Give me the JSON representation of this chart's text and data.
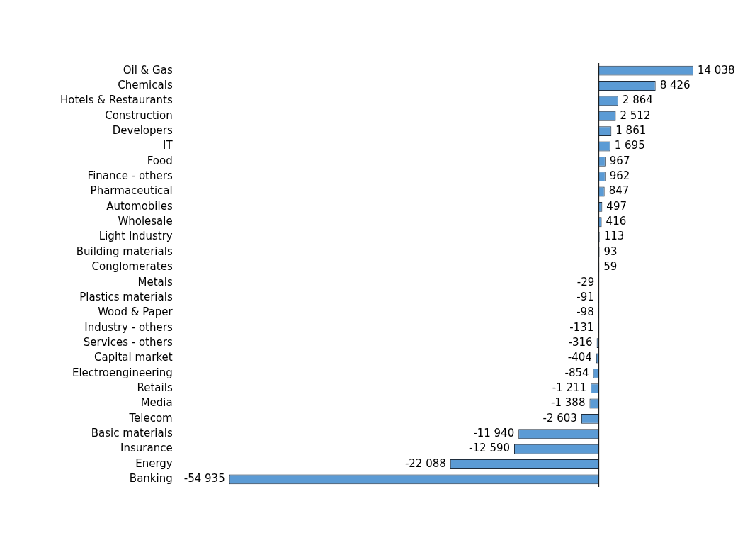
{
  "chart_data": {
    "type": "bar",
    "orientation": "horizontal",
    "color": "#5b9bd5",
    "categories": [
      "Oil & Gas",
      "Chemicals",
      "Hotels & Restaurants",
      "Construction",
      "Developers",
      "IT",
      "Food",
      "Finance - others",
      "Pharmaceutical",
      "Automobiles",
      "Wholesale",
      "Light Industry",
      "Building materials",
      "Conglomerates",
      "Metals",
      "Plastics materials",
      "Wood & Paper",
      "Industry - others",
      "Services - others",
      "Capital market",
      "Electroengineering",
      "Retails",
      "Media",
      "Telecom",
      "Basic materials",
      "Insurance",
      "Energy",
      "Banking"
    ],
    "values": [
      14038,
      8426,
      2864,
      2512,
      1861,
      1695,
      967,
      962,
      847,
      497,
      416,
      113,
      93,
      59,
      -29,
      -91,
      -98,
      -131,
      -316,
      -404,
      -854,
      -1211,
      -1388,
      -2603,
      -11940,
      -12590,
      -22088,
      -54935
    ],
    "value_labels": [
      "14 038",
      "8 426",
      "2 864",
      "2 512",
      "1 861",
      "1 695",
      "967",
      "962",
      "847",
      "497",
      "416",
      "113",
      "93",
      "59",
      "-29",
      "-91",
      "-98",
      "-131",
      "-316",
      "-404",
      "-854",
      "-1 211",
      "-1 388",
      "-2 603",
      "-11 940",
      "-12 590",
      "-22 088",
      "-54 935"
    ],
    "grid": false,
    "legend": false
  }
}
